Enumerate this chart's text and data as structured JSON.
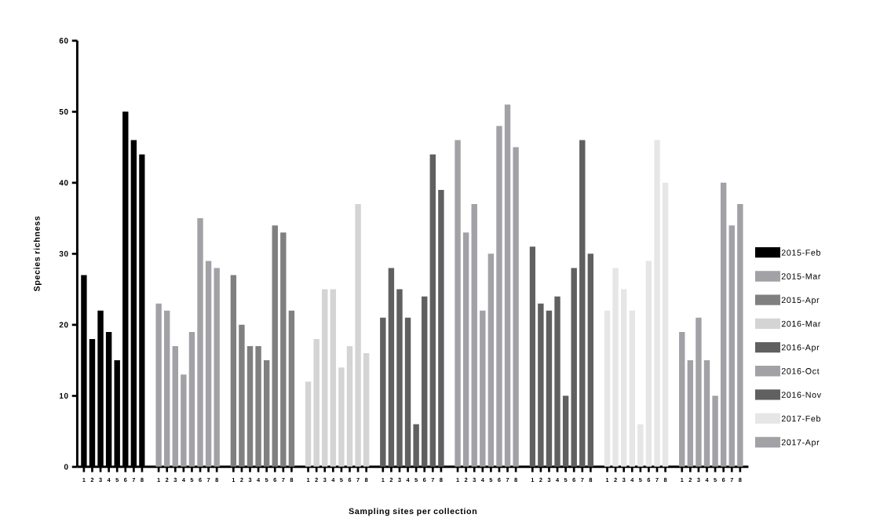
{
  "chart_data": {
    "type": "bar",
    "xlabel": "Sampling sites per collection",
    "ylabel": "Species richness",
    "categories": [
      "1",
      "2",
      "3",
      "4",
      "5",
      "6",
      "7",
      "8",
      null,
      "1",
      "2",
      "3",
      "4",
      "5",
      "6",
      "7",
      "8",
      null,
      "1",
      "2",
      "3",
      "4",
      "5",
      "6",
      "7",
      "8",
      null,
      "1",
      "2",
      "3",
      "4",
      "5",
      "6",
      "7",
      "8",
      null,
      "1",
      "2",
      "3",
      "4",
      "5",
      "6",
      "7",
      "8",
      null,
      "1",
      "2",
      "3",
      "4",
      "5",
      "6",
      "7",
      "8",
      null,
      "1",
      "2",
      "3",
      "4",
      "5",
      "6",
      "7",
      "8",
      null,
      "1",
      "2",
      "3",
      "4",
      "5",
      "6",
      "7",
      "8",
      null,
      "1",
      "2",
      "3",
      "4",
      "5",
      "6",
      "7",
      "8"
    ],
    "series": [
      {
        "name": "2015-Feb",
        "color": "#000000",
        "values": [
          27,
          18,
          22,
          19,
          15,
          50,
          46,
          44,
          null,
          null,
          null,
          null,
          null,
          null,
          null,
          null,
          null,
          null,
          null,
          null,
          null,
          null,
          null,
          null,
          null,
          null,
          null,
          null,
          null,
          null,
          null,
          null,
          null,
          null,
          null,
          null,
          null,
          null,
          null,
          null,
          null,
          null,
          null,
          null,
          null,
          null,
          null,
          null,
          null,
          null,
          null,
          null,
          null,
          null,
          null,
          null,
          null,
          null,
          null,
          null,
          null,
          null,
          null,
          null,
          null,
          null,
          null,
          null,
          null,
          null,
          null,
          null,
          null,
          null,
          null,
          null,
          null,
          null,
          null,
          null
        ]
      },
      {
        "name": "2015-Mar",
        "color": "#a2a1a6",
        "values": [
          null,
          null,
          null,
          null,
          null,
          null,
          null,
          null,
          null,
          23,
          22,
          17,
          13,
          19,
          35,
          29,
          28,
          null,
          null,
          null,
          null,
          null,
          null,
          null,
          null,
          null,
          null,
          null,
          null,
          null,
          null,
          null,
          null,
          null,
          null,
          null,
          null,
          null,
          null,
          null,
          null,
          null,
          null,
          null,
          null,
          null,
          null,
          null,
          null,
          null,
          null,
          null,
          null,
          null,
          null,
          null,
          null,
          null,
          null,
          null,
          null,
          null,
          null,
          null,
          null,
          null,
          null,
          null,
          null,
          null,
          null,
          null,
          null,
          null,
          null,
          null,
          null,
          null,
          null,
          null
        ]
      },
      {
        "name": "2015-Apr",
        "color": "#808080",
        "values": [
          null,
          null,
          null,
          null,
          null,
          null,
          null,
          null,
          null,
          null,
          null,
          null,
          null,
          null,
          null,
          null,
          null,
          null,
          27,
          20,
          17,
          17,
          15,
          34,
          33,
          22,
          null,
          null,
          null,
          null,
          null,
          null,
          null,
          null,
          null,
          null,
          null,
          null,
          null,
          null,
          null,
          null,
          null,
          null,
          null,
          null,
          null,
          null,
          null,
          null,
          null,
          null,
          null,
          null,
          null,
          null,
          null,
          null,
          null,
          null,
          null,
          null,
          null,
          null,
          null,
          null,
          null,
          null,
          null,
          null,
          null,
          null,
          null,
          null,
          null,
          null,
          null,
          null,
          null,
          null
        ]
      },
      {
        "name": "2016-Mar",
        "color": "#d4d4d4",
        "values": [
          null,
          null,
          null,
          null,
          null,
          null,
          null,
          null,
          null,
          null,
          null,
          null,
          null,
          null,
          null,
          null,
          null,
          null,
          null,
          null,
          null,
          null,
          null,
          null,
          null,
          null,
          null,
          12,
          18,
          25,
          25,
          14,
          17,
          37,
          16,
          null,
          null,
          null,
          null,
          null,
          null,
          null,
          null,
          null,
          null,
          null,
          null,
          null,
          null,
          null,
          null,
          null,
          null,
          null,
          null,
          null,
          null,
          null,
          null,
          null,
          null,
          null,
          null,
          null,
          null,
          null,
          null,
          null,
          null,
          null,
          null,
          null,
          null,
          null,
          null,
          null,
          null,
          null,
          null,
          null
        ]
      },
      {
        "name": "2016-Apr",
        "color": "#606060",
        "values": [
          null,
          null,
          null,
          null,
          null,
          null,
          null,
          null,
          null,
          null,
          null,
          null,
          null,
          null,
          null,
          null,
          null,
          null,
          null,
          null,
          null,
          null,
          null,
          null,
          null,
          null,
          null,
          null,
          null,
          null,
          null,
          null,
          null,
          null,
          null,
          null,
          21,
          28,
          25,
          21,
          6,
          24,
          44,
          39,
          null,
          null,
          null,
          null,
          null,
          null,
          null,
          null,
          null,
          null,
          null,
          null,
          null,
          null,
          null,
          null,
          null,
          null,
          null,
          null,
          null,
          null,
          null,
          null,
          null,
          null,
          null,
          null,
          null,
          null,
          null,
          null,
          null,
          null,
          null,
          null
        ]
      },
      {
        "name": "2016-Oct",
        "color": "#a2a1a6",
        "values": [
          null,
          null,
          null,
          null,
          null,
          null,
          null,
          null,
          null,
          null,
          null,
          null,
          null,
          null,
          null,
          null,
          null,
          null,
          null,
          null,
          null,
          null,
          null,
          null,
          null,
          null,
          null,
          null,
          null,
          null,
          null,
          null,
          null,
          null,
          null,
          null,
          null,
          null,
          null,
          null,
          null,
          null,
          null,
          null,
          null,
          46,
          33,
          37,
          22,
          30,
          48,
          51,
          45,
          null,
          null,
          null,
          null,
          null,
          null,
          null,
          null,
          null,
          null,
          null,
          null,
          null,
          null,
          null,
          null,
          null,
          null,
          null,
          null,
          null,
          null,
          null,
          null,
          null,
          null,
          null
        ]
      },
      {
        "name": "2016-Nov",
        "color": "#606060",
        "values": [
          null,
          null,
          null,
          null,
          null,
          null,
          null,
          null,
          null,
          null,
          null,
          null,
          null,
          null,
          null,
          null,
          null,
          null,
          null,
          null,
          null,
          null,
          null,
          null,
          null,
          null,
          null,
          null,
          null,
          null,
          null,
          null,
          null,
          null,
          null,
          null,
          null,
          null,
          null,
          null,
          null,
          null,
          null,
          null,
          null,
          null,
          null,
          null,
          null,
          null,
          null,
          null,
          null,
          null,
          31,
          23,
          22,
          24,
          10,
          28,
          46,
          30,
          null,
          null,
          null,
          null,
          null,
          null,
          null,
          null,
          null,
          null,
          null,
          null,
          null,
          null,
          null,
          null,
          null,
          null
        ]
      },
      {
        "name": "2017-Feb",
        "color": "#e6e6e6",
        "values": [
          null,
          null,
          null,
          null,
          null,
          null,
          null,
          null,
          null,
          null,
          null,
          null,
          null,
          null,
          null,
          null,
          null,
          null,
          null,
          null,
          null,
          null,
          null,
          null,
          null,
          null,
          null,
          null,
          null,
          null,
          null,
          null,
          null,
          null,
          null,
          null,
          null,
          null,
          null,
          null,
          null,
          null,
          null,
          null,
          null,
          null,
          null,
          null,
          null,
          null,
          null,
          null,
          null,
          null,
          null,
          null,
          null,
          null,
          null,
          null,
          null,
          null,
          null,
          22,
          28,
          25,
          22,
          6,
          29,
          46,
          40,
          null,
          null,
          null,
          null,
          null,
          null,
          null,
          null,
          null
        ]
      },
      {
        "name": "2017-Apr",
        "color": "#a2a1a6",
        "values": [
          null,
          null,
          null,
          null,
          null,
          null,
          null,
          null,
          null,
          null,
          null,
          null,
          null,
          null,
          null,
          null,
          null,
          null,
          null,
          null,
          null,
          null,
          null,
          null,
          null,
          null,
          null,
          null,
          null,
          null,
          null,
          null,
          null,
          null,
          null,
          null,
          null,
          null,
          null,
          null,
          null,
          null,
          null,
          null,
          null,
          null,
          null,
          null,
          null,
          null,
          null,
          null,
          null,
          null,
          null,
          null,
          null,
          null,
          null,
          null,
          null,
          null,
          null,
          null,
          null,
          null,
          null,
          null,
          null,
          null,
          null,
          null,
          19,
          15,
          21,
          15,
          10,
          40,
          34,
          37
        ]
      }
    ],
    "ylim": [
      0,
      60
    ],
    "yticks": [
      0,
      10,
      20,
      30,
      40,
      50,
      60
    ],
    "legend": "right"
  }
}
